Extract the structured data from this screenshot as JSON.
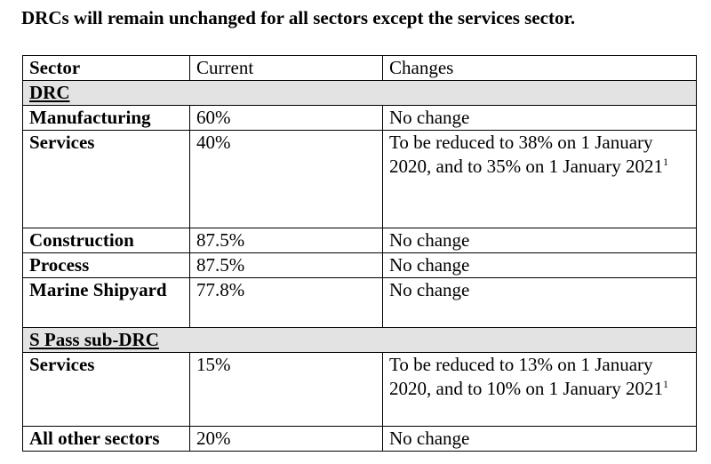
{
  "title": "DRCs will remain unchanged for all sectors except the services sector.",
  "table": {
    "headers": [
      "Sector",
      "Current",
      "Changes"
    ],
    "sections": [
      {
        "label": "DRC",
        "rows": [
          {
            "sector": "Manufacturing",
            "current": "60%",
            "changes": "No change"
          },
          {
            "sector": "Services",
            "current": "40%",
            "changes": "To be reduced to 38% on 1 January 2020, and to 35% on 1 January 2021",
            "note": "1"
          },
          {
            "sector": "Construction",
            "current": "87.5%",
            "changes": "No change"
          },
          {
            "sector": "Process",
            "current": "87.5%",
            "changes": "No change"
          },
          {
            "sector": "Marine Shipyard",
            "current": "77.8%",
            "changes": "No change"
          }
        ]
      },
      {
        "label": "S Pass sub-DRC",
        "rows": [
          {
            "sector": "Services",
            "current": "15%",
            "changes": "To be reduced to 13% on 1 January 2020, and to 10% on 1 January 2021",
            "note": "1"
          },
          {
            "sector": "All other sectors",
            "current": "20%",
            "changes": "No change"
          }
        ]
      }
    ]
  }
}
